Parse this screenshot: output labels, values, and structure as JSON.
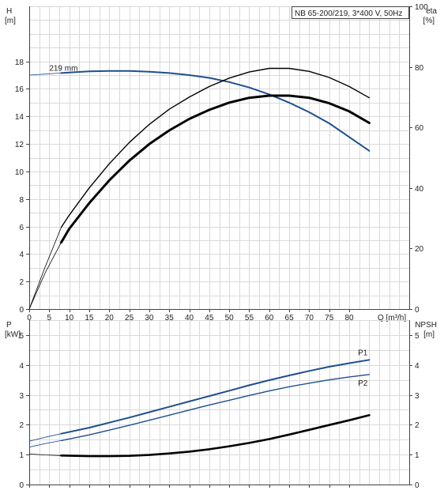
{
  "chart_data": [
    {
      "type": "line",
      "title": "NB 65-200/219, 3*400 V, 50Hz",
      "xlabel": "Q [m³/h]",
      "x_ticks": [
        "0",
        "5",
        "10",
        "15",
        "20",
        "25",
        "30",
        "35",
        "40",
        "45",
        "50",
        "55",
        "60",
        "65",
        "70",
        "75",
        "80"
      ],
      "xlim": [
        0,
        95
      ],
      "y_left": {
        "label_line1": "H",
        "label_line2": "[m]",
        "range": [
          0,
          22
        ],
        "ticks": [
          "0",
          "2",
          "4",
          "6",
          "8",
          "10",
          "12",
          "14",
          "16",
          "18"
        ]
      },
      "y_right": {
        "label_line1": "eta",
        "label_line2": "[%]",
        "range": [
          0,
          100
        ],
        "ticks": [
          "0",
          "20",
          "40",
          "60",
          "80",
          "100"
        ]
      },
      "grid": true,
      "annotations": [
        {
          "text": "219 mm",
          "x": 5,
          "y": 17.15
        }
      ],
      "series": [
        {
          "axis": "left",
          "color": "#1f4e8c",
          "width": 2,
          "thin": {
            "x": [
              0,
              4,
              8
            ],
            "y": [
              17.0,
              17.08,
              17.15
            ]
          },
          "x": [
            8,
            15,
            20,
            25,
            30,
            35,
            40,
            45,
            50,
            55,
            60,
            65,
            70,
            75,
            80,
            85
          ],
          "y": [
            17.15,
            17.27,
            17.3,
            17.3,
            17.25,
            17.15,
            17.0,
            16.8,
            16.5,
            16.1,
            15.6,
            15.0,
            14.3,
            13.5,
            12.5,
            11.5
          ]
        },
        {
          "axis": "right",
          "color": "#000000",
          "width": 1.4,
          "thin": {
            "x": [
              0,
              4,
              8
            ],
            "y": [
              0,
              14,
              27
            ]
          },
          "x": [
            8,
            10,
            15,
            20,
            25,
            30,
            35,
            40,
            45,
            50,
            55,
            60,
            65,
            70,
            75,
            80,
            85
          ],
          "y": [
            27,
            31,
            40,
            48,
            55,
            61,
            66,
            70,
            73.5,
            76.3,
            78.3,
            79.5,
            79.5,
            78.5,
            76.5,
            73.5,
            69.8
          ]
        },
        {
          "axis": "right",
          "color": "#000000",
          "width": 3,
          "thin": {
            "x": [
              0,
              4,
              8
            ],
            "y": [
              0,
              12,
              22
            ]
          },
          "x": [
            8,
            10,
            15,
            20,
            25,
            30,
            35,
            40,
            45,
            50,
            55,
            60,
            65,
            70,
            75,
            80,
            85
          ],
          "y": [
            22,
            26.5,
            35,
            42.5,
            49,
            54.5,
            59,
            62.8,
            65.8,
            68.2,
            69.8,
            70.5,
            70.5,
            69.8,
            68,
            65.3,
            61.5
          ]
        }
      ]
    },
    {
      "type": "line",
      "xlim": [
        0,
        95
      ],
      "y_left": {
        "label_line1": "P",
        "label_line2": "[kW]",
        "range": [
          0,
          5.5
        ],
        "ticks": [
          "0",
          "1",
          "2",
          "3",
          "4",
          "5"
        ]
      },
      "y_right": {
        "label_line1": "NPSH",
        "label_line2": "[m]",
        "range": [
          0,
          5.5
        ],
        "ticks": [
          "0",
          "1",
          "2",
          "3",
          "4",
          "5"
        ]
      },
      "grid": true,
      "series": [
        {
          "name": "P1",
          "axis": "left",
          "color": "#1f4e8c",
          "width": 2,
          "thin": {
            "x": [
              0,
              4,
              8
            ],
            "y": [
              1.45,
              1.58,
              1.7
            ]
          },
          "x": [
            8,
            15,
            20,
            25,
            30,
            35,
            40,
            45,
            50,
            55,
            60,
            65,
            70,
            75,
            80,
            85
          ],
          "y": [
            1.7,
            1.9,
            2.07,
            2.24,
            2.42,
            2.6,
            2.78,
            2.96,
            3.14,
            3.32,
            3.49,
            3.65,
            3.8,
            3.94,
            4.06,
            4.17
          ]
        },
        {
          "name": "P2",
          "axis": "left",
          "color": "#1f4e8c",
          "width": 1.4,
          "thin": {
            "x": [
              0,
              4,
              8
            ],
            "y": [
              1.25,
              1.37,
              1.47
            ]
          },
          "x": [
            8,
            15,
            20,
            25,
            30,
            35,
            40,
            45,
            50,
            55,
            60,
            65,
            70,
            75,
            80,
            85
          ],
          "y": [
            1.47,
            1.66,
            1.82,
            1.98,
            2.15,
            2.32,
            2.49,
            2.66,
            2.82,
            2.98,
            3.13,
            3.27,
            3.39,
            3.5,
            3.6,
            3.68
          ]
        },
        {
          "axis": "right",
          "color": "#000000",
          "width": 2.6,
          "thin": {
            "x": [
              0,
              4,
              8
            ],
            "y": [
              1.02,
              0.99,
              0.97
            ]
          },
          "x": [
            8,
            15,
            20,
            25,
            30,
            35,
            40,
            45,
            50,
            55,
            60,
            65,
            70,
            75,
            80,
            85
          ],
          "y": [
            0.97,
            0.95,
            0.95,
            0.96,
            0.99,
            1.04,
            1.1,
            1.18,
            1.28,
            1.39,
            1.52,
            1.67,
            1.83,
            1.99,
            2.15,
            2.32
          ]
        }
      ]
    }
  ]
}
